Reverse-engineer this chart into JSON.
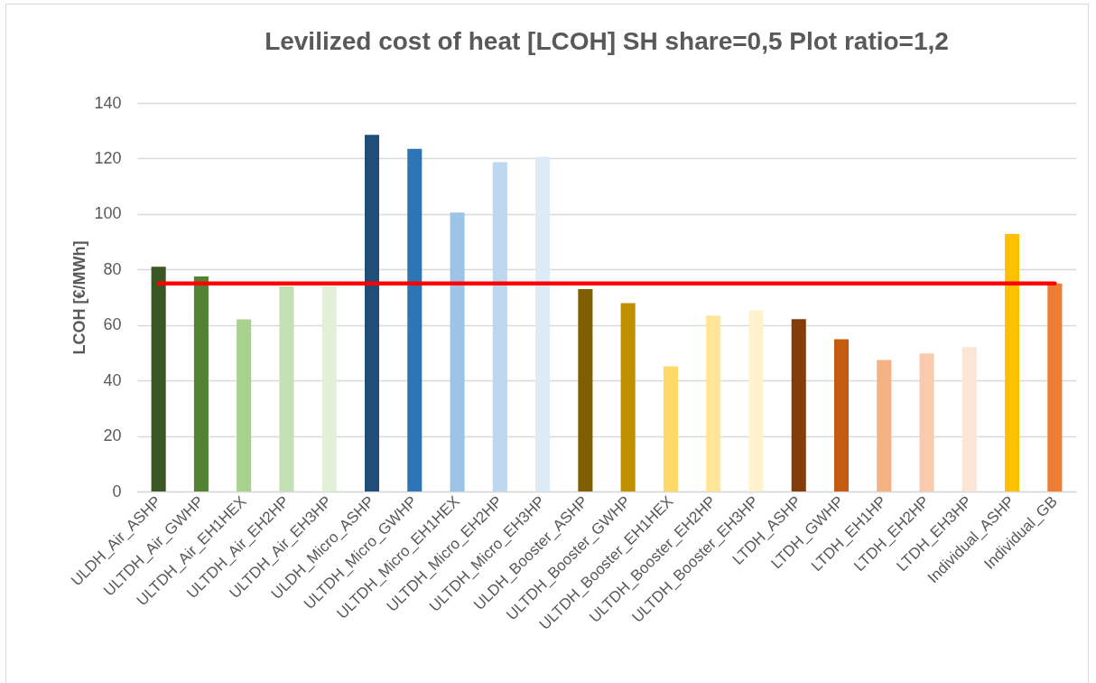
{
  "chart_data": {
    "type": "bar",
    "title": "Levilized cost of heat [LCOH] SH share=0,5 Plot ratio=1,2",
    "ylabel": "LCOH [€/MWh]",
    "categories": [
      "ULDH_Air_ASHP",
      "ULTDH_Air_GWHP",
      "ULTDH_Air_EH1HEX",
      "ULTDH_Air_EH2HP",
      "ULTDH_Air_EH3HP",
      "ULDH_Micro_ASHP",
      "ULTDH_Micro_GWHP",
      "ULTDH_Micro_EH1HEX",
      "ULTDH_Micro_EH2HP",
      "ULTDH_Micro_EH3HP",
      "ULDH_Booster_ASHP",
      "ULTDH_Booster_GWHP",
      "ULTDH_Booster_EH1HEX",
      "ULTDH_Booster_EH2HP",
      "ULTDH_Booster_EH3HP",
      "LTDH_ASHP",
      "LTDH_GWHP",
      "LTDH_EH1HP",
      "LTDH_EH2HP",
      "LTDH_EH3HP",
      "Individual_ASHP",
      "Individual_GB"
    ],
    "series": [
      {
        "values": [
          81,
          77.5,
          62,
          74,
          74,
          128.5,
          123.5,
          100.5,
          118.7,
          120.6,
          72.9,
          67.9,
          45.1,
          63.4,
          65.3,
          62.1,
          54.9,
          47.4,
          49.7,
          52,
          92.8,
          75
        ],
        "colors": [
          "#385723",
          "#548235",
          "#a9d18e",
          "#c5e0b4",
          "#e2f0d9",
          "#1f4e79",
          "#2e75b6",
          "#9dc3e6",
          "#bdd7ee",
          "#deebf7",
          "#7f6000",
          "#bf9000",
          "#ffd966",
          "#ffe699",
          "#fff2cc",
          "#843c0c",
          "#c55a11",
          "#f4b183",
          "#f8cbad",
          "#fbe5d6",
          "#ffc000",
          "#ed7d31"
        ]
      },
      {
        "type": "line",
        "color": "#ff0000",
        "values": [
          75,
          75,
          75,
          75,
          75,
          75,
          75,
          75,
          75,
          75,
          75,
          75,
          75,
          75,
          75,
          75,
          75,
          75,
          75,
          75,
          75,
          75
        ]
      }
    ],
    "ylim": [
      0,
      140
    ],
    "yticks": [
      0,
      20,
      40,
      60,
      80,
      100,
      120,
      140
    ],
    "grid": "y"
  }
}
